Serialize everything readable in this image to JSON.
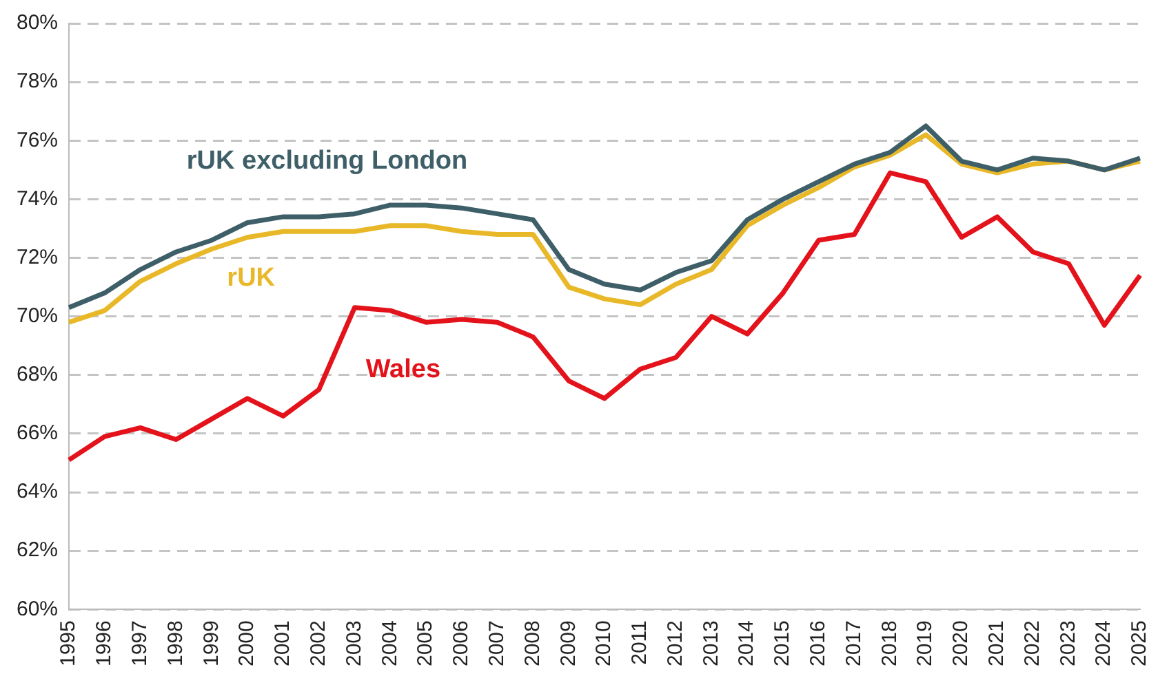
{
  "chart_data": {
    "type": "line",
    "categories": [
      "1995",
      "1996",
      "1997",
      "1998",
      "1999",
      "2000",
      "2001",
      "2002",
      "2003",
      "2004",
      "2005",
      "2006",
      "2007",
      "2008",
      "2009",
      "2010",
      "2011",
      "2012",
      "2013",
      "2014",
      "2015",
      "2016",
      "2017",
      "2018",
      "2019",
      "2020",
      "2021",
      "2022",
      "2023",
      "2024",
      "2025"
    ],
    "series": [
      {
        "name": "rUK excluding London",
        "color": "#3f5f68",
        "values": [
          70.3,
          70.8,
          71.6,
          72.2,
          72.6,
          73.2,
          73.4,
          73.4,
          73.5,
          73.8,
          73.8,
          73.7,
          73.5,
          73.3,
          71.6,
          71.1,
          70.9,
          71.5,
          71.9,
          73.3,
          74.0,
          74.6,
          75.2,
          75.6,
          76.5,
          75.3,
          75.0,
          75.4,
          75.3,
          75.0,
          75.4
        ]
      },
      {
        "name": "rUK",
        "color": "#e8b828",
        "values": [
          69.8,
          70.2,
          71.2,
          71.8,
          72.3,
          72.7,
          72.9,
          72.9,
          72.9,
          73.1,
          73.1,
          72.9,
          72.8,
          72.8,
          71.0,
          70.6,
          70.4,
          71.1,
          71.6,
          73.1,
          73.8,
          74.4,
          75.1,
          75.5,
          76.2,
          75.2,
          74.9,
          75.2,
          75.3,
          75.0,
          75.3
        ]
      },
      {
        "name": "Wales",
        "color": "#e3121b",
        "values": [
          65.1,
          65.9,
          66.2,
          65.8,
          66.5,
          67.2,
          66.6,
          67.5,
          70.3,
          70.2,
          69.8,
          69.9,
          69.8,
          69.3,
          67.8,
          67.2,
          68.2,
          68.6,
          70.0,
          69.4,
          70.8,
          72.6,
          72.8,
          74.9,
          74.6,
          72.7,
          73.4,
          72.2,
          71.8,
          69.7,
          71.4
        ]
      }
    ],
    "ylim": [
      60,
      80
    ],
    "yticks": [
      {
        "value": 60,
        "label": "60%"
      },
      {
        "value": 62,
        "label": "62%"
      },
      {
        "value": 64,
        "label": "64%"
      },
      {
        "value": 66,
        "label": "66%"
      },
      {
        "value": 68,
        "label": "68%"
      },
      {
        "value": 70,
        "label": "70%"
      },
      {
        "value": 72,
        "label": "72%"
      },
      {
        "value": 74,
        "label": "74%"
      },
      {
        "value": 76,
        "label": "76%"
      },
      {
        "value": 78,
        "label": "78%"
      },
      {
        "value": 80,
        "label": "80%"
      }
    ],
    "grid": "y",
    "legend": false,
    "marker": "none",
    "line_style": "solid"
  }
}
